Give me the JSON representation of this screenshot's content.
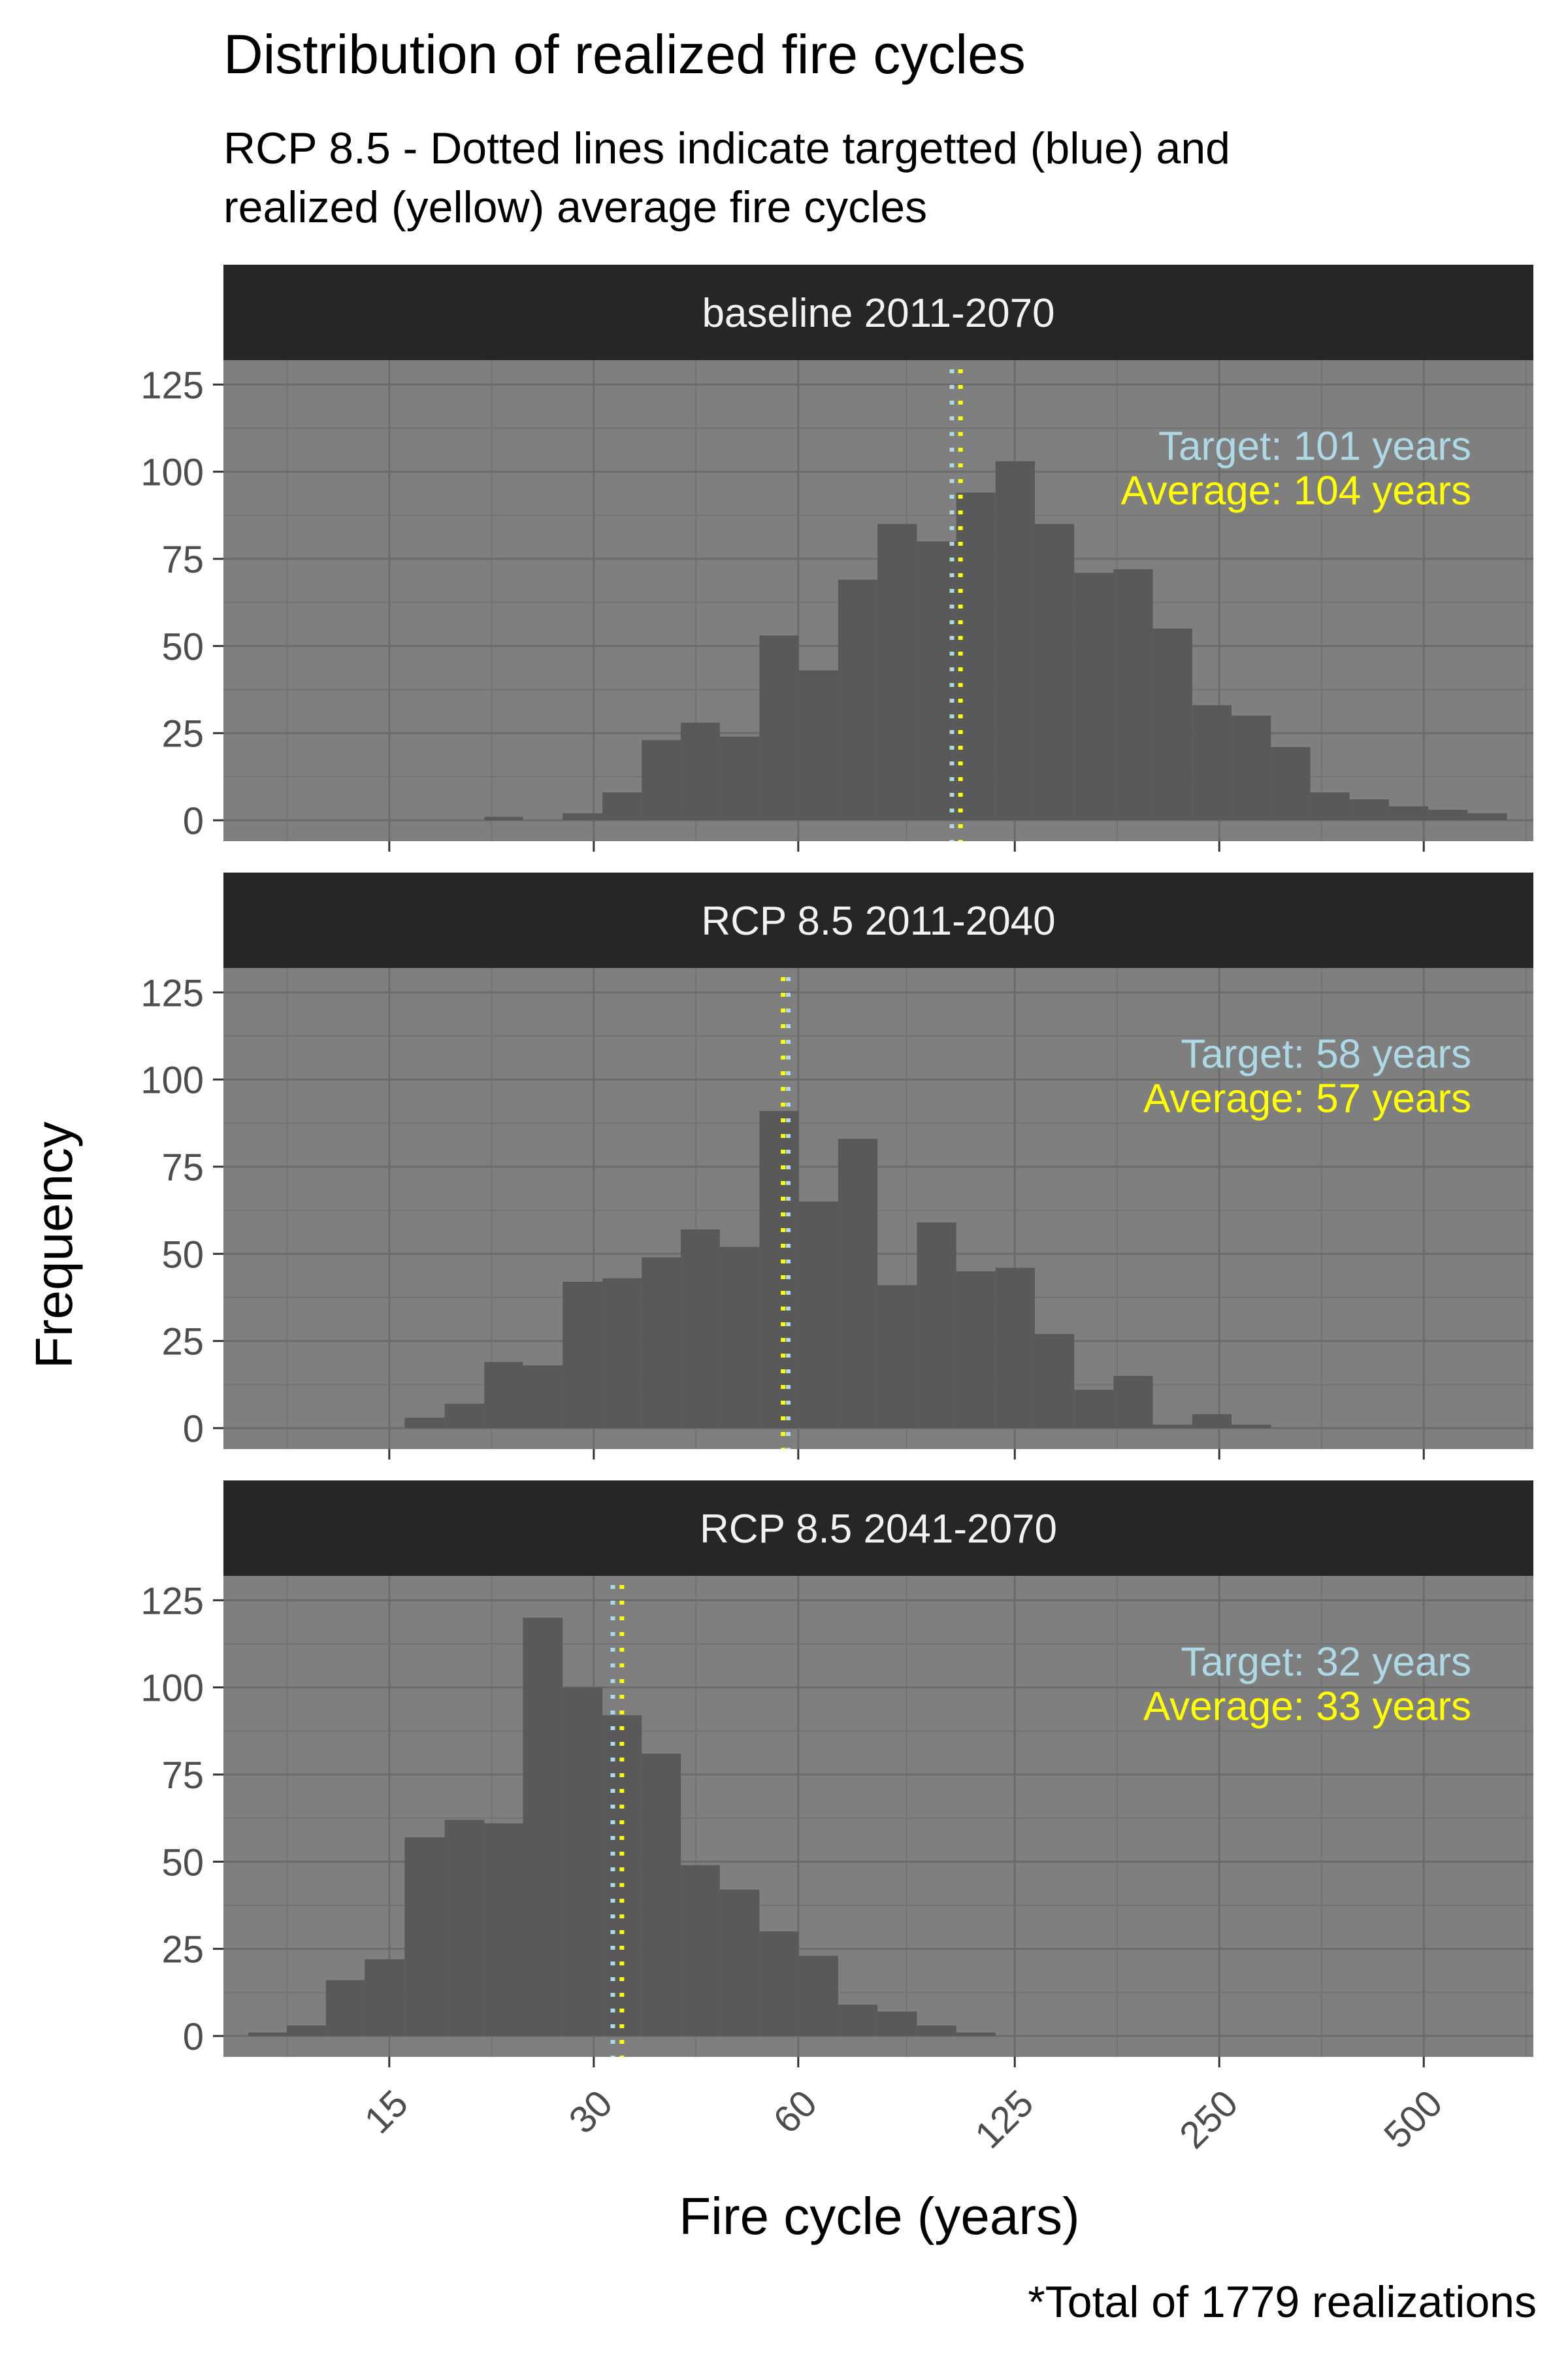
{
  "title": "Distribution of realized fire cycles",
  "subtitle_line1": "RCP 8.5 - Dotted lines indicate targetted (blue) and",
  "subtitle_line2": "realized (yellow) average fire cycles",
  "caption": "*Total of 1779 realizations",
  "colors": {
    "panel_bg": "#7f7f7f",
    "bar": "#595959",
    "strip": "#262626",
    "target": "#add8e6",
    "average": "#ffff00",
    "axis_text": "#4d4d4d",
    "grid": "#6b6b6b"
  },
  "chart_data": {
    "type": "bar",
    "subtype": "histogram",
    "x_scale": "log",
    "xlabel": "Fire cycle (years)",
    "ylabel": "Frequency",
    "x_ticks": [
      "15",
      "30",
      "60",
      "125",
      "250",
      "500"
    ],
    "y_ticks": [
      "0",
      "25",
      "50",
      "75",
      "100",
      "125"
    ],
    "ylim": [
      0,
      130
    ],
    "bin_edges": [
      9.3,
      10.6,
      12.1,
      13.8,
      15.8,
      18.1,
      20.7,
      23.6,
      27.0,
      30.9,
      35.3,
      40.3,
      46.0,
      52.6,
      60.1,
      68.7,
      78.5,
      89.7,
      102.5,
      117.1,
      133.8,
      152.9,
      174.7,
      199.6,
      228.1,
      260.6,
      297.8,
      340.3,
      388.8,
      444.3,
      507.7,
      580.1,
      662.8
    ],
    "panels": [
      {
        "label": "baseline 2011-2070",
        "target": 101,
        "average": 104,
        "target_label": "Target: 101 years",
        "average_label": "Average: 104 years",
        "counts": [
          0,
          0,
          0,
          0,
          0,
          0,
          1,
          0,
          2,
          8,
          23,
          28,
          24,
          53,
          43,
          69,
          85,
          80,
          94,
          103,
          85,
          71,
          72,
          55,
          33,
          30,
          21,
          8,
          6,
          4,
          3,
          2
        ]
      },
      {
        "label": "RCP 8.5 2011-2040",
        "target": 58,
        "average": 57,
        "target_label": "Target: 58 years",
        "average_label": "Average: 57 years",
        "counts": [
          0,
          0,
          0,
          0,
          3,
          7,
          19,
          18,
          42,
          43,
          49,
          57,
          52,
          91,
          65,
          83,
          41,
          59,
          45,
          46,
          27,
          11,
          15,
          1,
          4,
          1,
          0,
          0,
          0,
          0,
          0,
          0
        ]
      },
      {
        "label": "RCP 8.5 2041-2070",
        "target": 32,
        "average": 33,
        "target_label": "Target: 32 years",
        "average_label": "Average: 33 years",
        "counts": [
          1,
          3,
          16,
          22,
          57,
          62,
          61,
          120,
          100,
          92,
          81,
          49,
          42,
          30,
          23,
          9,
          7,
          3,
          1,
          0,
          0,
          0,
          0,
          0,
          0,
          0,
          0,
          0,
          0,
          0,
          0,
          0
        ]
      }
    ]
  }
}
